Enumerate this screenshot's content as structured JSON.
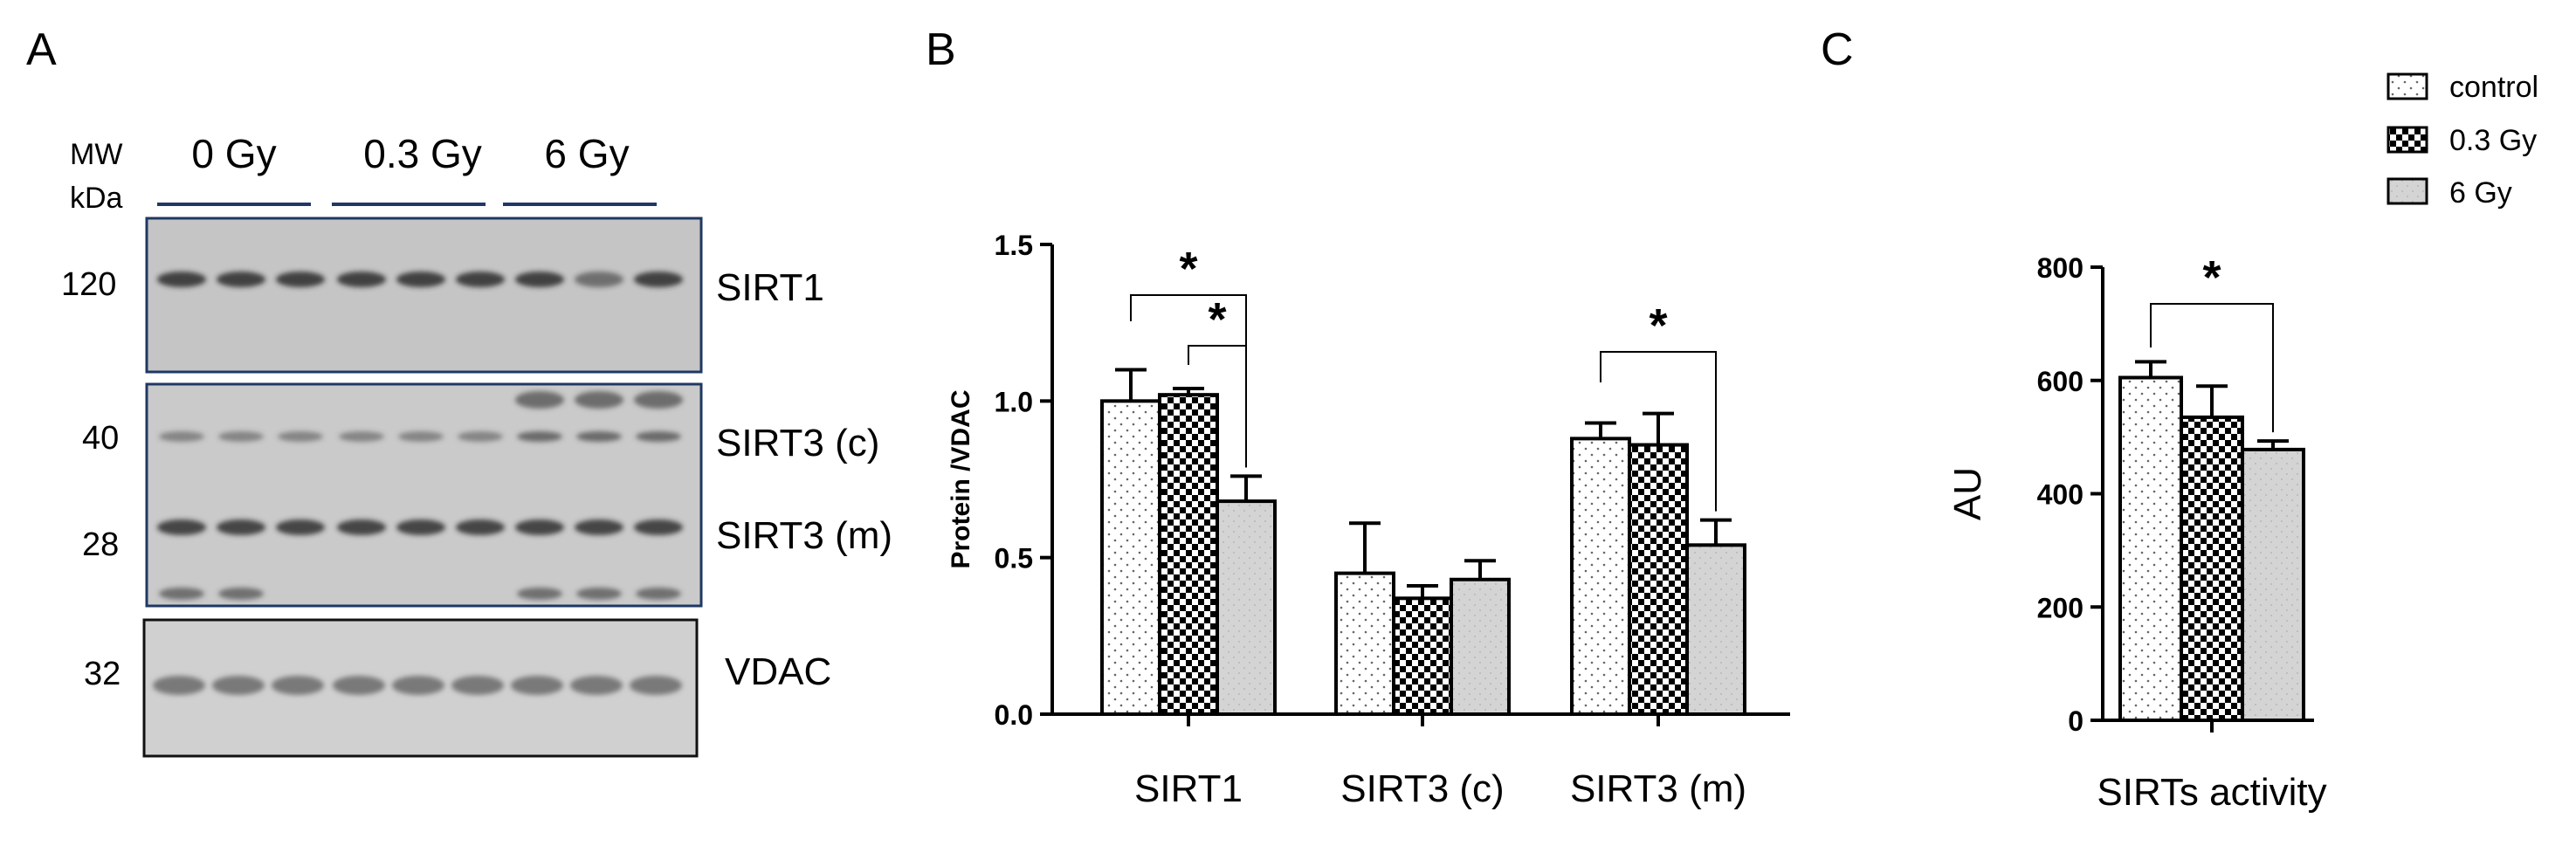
{
  "panel_labels": [
    "A",
    "B",
    "C"
  ],
  "blot": {
    "mw_header": "MW",
    "mw_unit": "kDa",
    "groups": [
      "0 Gy",
      "0.3 Gy",
      "6 Gy"
    ],
    "panels": [
      {
        "markers": [
          "120"
        ],
        "labels": [
          "SIRT1"
        ]
      },
      {
        "markers": [
          "40",
          "28"
        ],
        "labels": [
          "SIRT3 (c)",
          "SIRT3 (m)"
        ]
      },
      {
        "markers": [
          "32"
        ],
        "labels": [
          "VDAC"
        ]
      }
    ]
  },
  "legend": {
    "entries": [
      "control",
      "0.3 Gy",
      "6 Gy"
    ]
  },
  "colors": {
    "control_fill": "#ffffff",
    "gy03_fill": "#000000",
    "gy6_fill": "#d4d4d4",
    "blot_border": "#1f3864",
    "group_line": "#1f3864"
  },
  "chart_data": [
    {
      "type": "bar",
      "title": "",
      "xlabel": "",
      "ylabel": "Protein /VDAC",
      "ylim": [
        0,
        1.5
      ],
      "yticks": [
        "0.0",
        "0.5",
        "1.0",
        "1.5"
      ],
      "categories": [
        "SIRT1",
        "SIRT3 (c)",
        "SIRT3 (m)"
      ],
      "series": [
        {
          "name": "control",
          "values": [
            1.0,
            0.45,
            0.88
          ],
          "errors": [
            0.1,
            0.16,
            0.05
          ]
        },
        {
          "name": "0.3 Gy",
          "values": [
            1.02,
            0.37,
            0.86
          ],
          "errors": [
            0.02,
            0.04,
            0.1
          ]
        },
        {
          "name": "6 Gy",
          "values": [
            0.68,
            0.43,
            0.54
          ],
          "errors": [
            0.08,
            0.06,
            0.08
          ]
        }
      ],
      "significance": [
        {
          "category": 0,
          "from": "control",
          "to": "6 Gy",
          "label": "*"
        },
        {
          "category": 0,
          "from": "0.3 Gy",
          "to": "6 Gy",
          "label": "*"
        },
        {
          "category": 2,
          "from": "control",
          "to": "6 Gy",
          "label": "*"
        }
      ]
    },
    {
      "type": "bar",
      "title": "",
      "xlabel": "",
      "ylabel": "AU",
      "ylim": [
        0,
        800
      ],
      "yticks": [
        "0",
        "200",
        "400",
        "600",
        "800"
      ],
      "categories": [
        "SIRTs activity"
      ],
      "series": [
        {
          "name": "control",
          "values": [
            605
          ],
          "errors": [
            28
          ]
        },
        {
          "name": "0.3 Gy",
          "values": [
            535
          ],
          "errors": [
            55
          ]
        },
        {
          "name": "6 Gy",
          "values": [
            478
          ],
          "errors": [
            15
          ]
        }
      ],
      "significance": [
        {
          "category": 0,
          "from": "control",
          "to": "6 Gy",
          "label": "*"
        }
      ]
    }
  ]
}
